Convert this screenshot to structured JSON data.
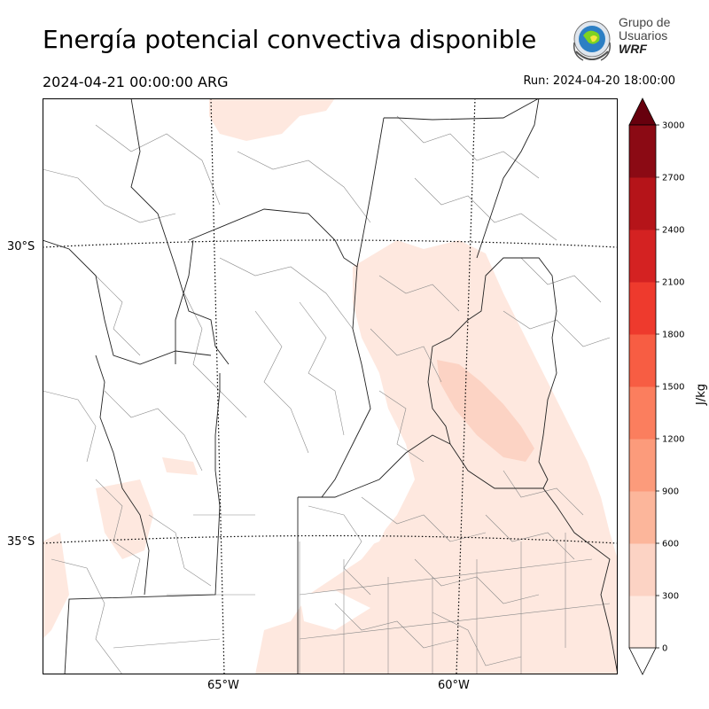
{
  "header": {
    "title": "Energía potencial convectiva disponible",
    "valid_time": "2024-04-21 00:00:00 ARG",
    "run_time": "Run: 2024-04-20 18:00:00"
  },
  "logo": {
    "line1": "Grupo de",
    "line2": "Usuarios",
    "line3": "WRF"
  },
  "map": {
    "lat_labels": [
      "30°S",
      "35°S"
    ],
    "lon_labels": [
      "65°W",
      "60°W"
    ]
  },
  "colorbar": {
    "unit": "J/kg",
    "ticks": [
      "0",
      "300",
      "600",
      "900",
      "1200",
      "1500",
      "1800",
      "2100",
      "2400",
      "2700",
      "3000"
    ],
    "colors": [
      "#fee8df",
      "#fcd3c4",
      "#fcb69b",
      "#fc9b7b",
      "#fb7e5e",
      "#f75d43",
      "#ee3a2d",
      "#d42222",
      "#b51419",
      "#8b0a14",
      "#67000d"
    ]
  }
}
